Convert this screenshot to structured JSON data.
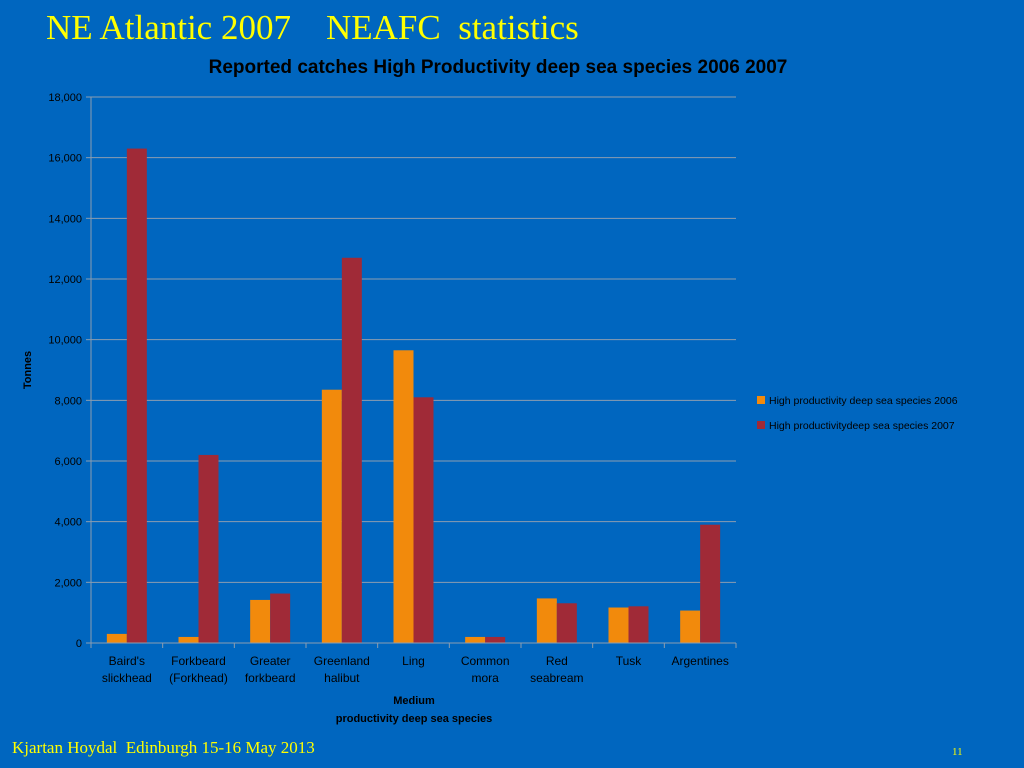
{
  "slide": {
    "title": "NE Atlantic 2007    NEAFC  statistics",
    "footer": "Kjartan Hoydal  Edinburgh 15-16 May 2013",
    "page_number": "11"
  },
  "chart_data": {
    "type": "bar",
    "title": "Reported catches High Productivity deep sea species 2006 2007",
    "xlabel": [
      "Medium",
      "productivity deep sea species"
    ],
    "ylabel": "Tonnes",
    "ylim": [
      0,
      18000
    ],
    "yticks": [
      0,
      2000,
      4000,
      6000,
      8000,
      10000,
      12000,
      14000,
      16000,
      18000
    ],
    "ytick_labels": [
      "0",
      "2,000",
      "4,000",
      "6,000",
      "8,000",
      "10,000",
      "12,000",
      "14,000",
      "16,000",
      "18,000"
    ],
    "grid": true,
    "legend_position": "right",
    "categories": [
      [
        "Baird's",
        "slickhead"
      ],
      [
        "Forkbeard",
        "(Forkhead)"
      ],
      [
        "Greater",
        "forkbeard"
      ],
      [
        "Greenland",
        "halibut"
      ],
      [
        "Ling"
      ],
      [
        "Common",
        "mora"
      ],
      [
        "Red",
        "seabream"
      ],
      [
        "Tusk"
      ],
      [
        "Argentines"
      ]
    ],
    "series": [
      {
        "name": "High productivity deep sea species 2006",
        "color": "#f28a0c",
        "values": [
          300,
          200,
          1420,
          8350,
          9650,
          200,
          1470,
          1170,
          1070
        ]
      },
      {
        "name": "High  productivitydeep sea species 2007",
        "color": "#a02a37",
        "values": [
          16300,
          6200,
          1630,
          12700,
          8100,
          200,
          1310,
          1210,
          3900
        ]
      }
    ]
  }
}
